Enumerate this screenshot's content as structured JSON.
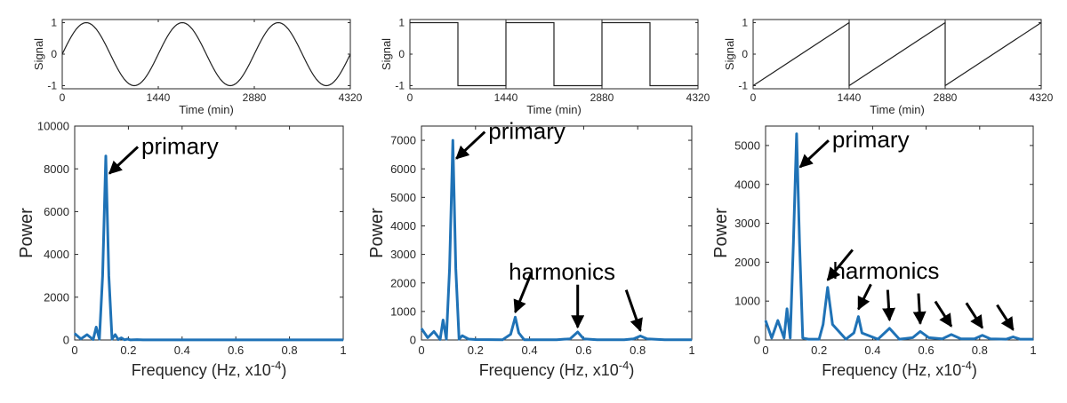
{
  "figure": {
    "colors": {
      "spectrum": "#1f72b6",
      "signal": "#222222",
      "axis": "#262626",
      "arrow": "#000000"
    }
  },
  "chart_data": [
    {
      "type": "line",
      "id": "signal-sine",
      "waveform": "sine",
      "xlabel": "Time (min)",
      "ylabel": "Signal",
      "xlim": [
        0,
        4320
      ],
      "ylim": [
        -1.1,
        1.1
      ],
      "xticks": [
        0,
        1440,
        2880,
        4320
      ],
      "yticks": [
        -1,
        0,
        1
      ],
      "period_min": 1440,
      "amplitude": 1
    },
    {
      "type": "line",
      "id": "signal-square",
      "waveform": "square",
      "xlabel": "Time (min)",
      "ylabel": "Signal",
      "xlim": [
        0,
        4320
      ],
      "ylim": [
        -1.1,
        1.1
      ],
      "xticks": [
        0,
        1440,
        2880,
        4320
      ],
      "yticks": [
        -1,
        0,
        1
      ],
      "period_min": 1440,
      "amplitude": 1
    },
    {
      "type": "line",
      "id": "signal-sawtooth",
      "waveform": "sawtooth",
      "xlabel": "Time (min)",
      "ylabel": "Signal",
      "xlim": [
        0,
        4320
      ],
      "ylim": [
        -1.1,
        1.1
      ],
      "xticks": [
        0,
        1440,
        2880,
        4320
      ],
      "yticks": [
        -1,
        0,
        1
      ],
      "period_min": 1440,
      "amplitude": 1
    },
    {
      "type": "line",
      "id": "spectrum-sine",
      "xlabel": "Frequency (Hz, x10",
      "xlabel_sup": "-4",
      "xlabel_end": ")",
      "ylabel": "Power",
      "xlim": [
        0,
        1
      ],
      "ylim": [
        0,
        10000
      ],
      "xticks": [
        0,
        0.2,
        0.4,
        0.6,
        0.8,
        1
      ],
      "yticks": [
        0,
        2000,
        4000,
        6000,
        8000,
        10000
      ],
      "x": [
        0,
        0.023,
        0.046,
        0.069,
        0.08,
        0.092,
        0.104,
        0.116,
        0.127,
        0.139,
        0.151,
        0.162,
        0.174,
        0.185,
        0.197,
        0.208,
        0.232,
        0.255,
        0.3,
        0.4,
        0.5,
        0.6,
        0.7,
        0.8,
        0.9,
        1.0
      ],
      "y": [
        300,
        50,
        250,
        20,
        600,
        40,
        3000,
        8600,
        3000,
        40,
        250,
        20,
        100,
        10,
        40,
        5,
        15,
        5,
        5,
        5,
        5,
        5,
        5,
        5,
        5,
        5
      ],
      "annotations": [
        {
          "text": "primary",
          "x": 0.116,
          "y": 7700
        }
      ]
    },
    {
      "type": "line",
      "id": "spectrum-square",
      "xlabel": "Frequency (Hz, x10",
      "xlabel_sup": "-4",
      "xlabel_end": ")",
      "ylabel": "Power",
      "xlim": [
        0,
        1
      ],
      "ylim": [
        0,
        7500
      ],
      "xticks": [
        0,
        0.2,
        0.4,
        0.6,
        0.8,
        1
      ],
      "yticks": [
        0,
        1000,
        2000,
        3000,
        4000,
        5000,
        6000,
        7000
      ],
      "x": [
        0,
        0.023,
        0.046,
        0.069,
        0.08,
        0.092,
        0.104,
        0.116,
        0.127,
        0.139,
        0.151,
        0.174,
        0.2,
        0.3,
        0.33,
        0.347,
        0.36,
        0.38,
        0.5,
        0.55,
        0.578,
        0.6,
        0.65,
        0.75,
        0.785,
        0.81,
        0.835,
        0.9,
        1.0
      ],
      "y": [
        400,
        80,
        300,
        20,
        700,
        30,
        2500,
        7000,
        2500,
        30,
        150,
        30,
        15,
        10,
        200,
        800,
        250,
        10,
        10,
        40,
        280,
        40,
        10,
        10,
        40,
        140,
        40,
        5,
        5
      ],
      "annotations": [
        {
          "text": "primary",
          "x": 0.116,
          "y": 6300
        },
        {
          "text": "harmonics",
          "x": 0.347,
          "y": 850,
          "extra_arrows": [
            [
              0.578,
              320
            ],
            [
              0.81,
              200
            ]
          ]
        }
      ]
    },
    {
      "type": "line",
      "id": "spectrum-sawtooth",
      "xlabel": "Frequency (Hz, x10",
      "xlabel_sup": "-4",
      "xlabel_end": ")",
      "ylabel": "Power",
      "xlim": [
        0,
        1
      ],
      "ylim": [
        0,
        5500
      ],
      "xticks": [
        0,
        0.2,
        0.4,
        0.6,
        0.8,
        1
      ],
      "yticks": [
        0,
        1000,
        2000,
        3000,
        4000,
        5000
      ],
      "x": [
        0,
        0.023,
        0.046,
        0.069,
        0.08,
        0.092,
        0.104,
        0.116,
        0.127,
        0.139,
        0.16,
        0.2,
        0.215,
        0.232,
        0.25,
        0.3,
        0.33,
        0.347,
        0.36,
        0.42,
        0.463,
        0.5,
        0.55,
        0.578,
        0.61,
        0.66,
        0.694,
        0.73,
        0.78,
        0.81,
        0.84,
        0.9,
        0.925,
        0.95,
        1.0
      ],
      "y": [
        500,
        50,
        500,
        50,
        800,
        50,
        2500,
        5300,
        2500,
        50,
        20,
        20,
        400,
        1350,
        400,
        20,
        180,
        600,
        180,
        20,
        300,
        20,
        60,
        220,
        60,
        30,
        140,
        30,
        30,
        120,
        30,
        20,
        80,
        20,
        20
      ],
      "annotations": [
        {
          "text": "primary",
          "x": 0.116,
          "y": 4400
        },
        {
          "text": "harmonics",
          "x": 0.232,
          "y": 1450,
          "extra_arrows": [
            [
              0.347,
              700
            ],
            [
              0.463,
              420
            ],
            [
              0.578,
              330
            ],
            [
              0.694,
              260
            ],
            [
              0.81,
              220
            ],
            [
              0.925,
              170
            ]
          ]
        }
      ]
    }
  ]
}
